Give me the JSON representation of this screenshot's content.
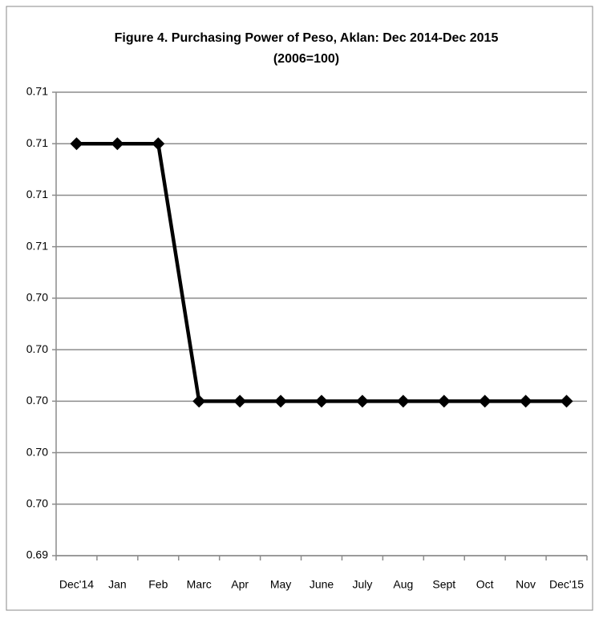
{
  "chart_data": {
    "type": "line",
    "title": "Figure 4. Purchasing Power of Peso, Aklan: Dec 2014-Dec 2015",
    "subtitle": "(2006=100)",
    "categories": [
      "Dec'14",
      "Jan",
      "Feb",
      "Marc",
      "Apr",
      "May",
      "June",
      "July",
      "Aug",
      "Sept",
      "Oct",
      "Nov",
      "Dec'15"
    ],
    "series": [
      {
        "name": "Purchasing Power of Peso",
        "color": "#000000",
        "values": [
          0.71,
          0.71,
          0.71,
          0.7,
          0.7,
          0.7,
          0.7,
          0.7,
          0.7,
          0.7,
          0.7,
          0.7,
          0.7
        ]
      }
    ],
    "ylim": [
      0.694,
      0.712
    ],
    "yticks": [
      {
        "value": 0.694,
        "label": "0.69"
      },
      {
        "value": 0.696,
        "label": "0.70"
      },
      {
        "value": 0.698,
        "label": "0.70"
      },
      {
        "value": 0.7,
        "label": "0.70"
      },
      {
        "value": 0.702,
        "label": "0.70"
      },
      {
        "value": 0.704,
        "label": "0.70"
      },
      {
        "value": 0.706,
        "label": "0.71"
      },
      {
        "value": 0.708,
        "label": "0.71"
      },
      {
        "value": 0.71,
        "label": "0.71"
      },
      {
        "value": 0.712,
        "label": "0.71"
      }
    ],
    "grid": true
  }
}
